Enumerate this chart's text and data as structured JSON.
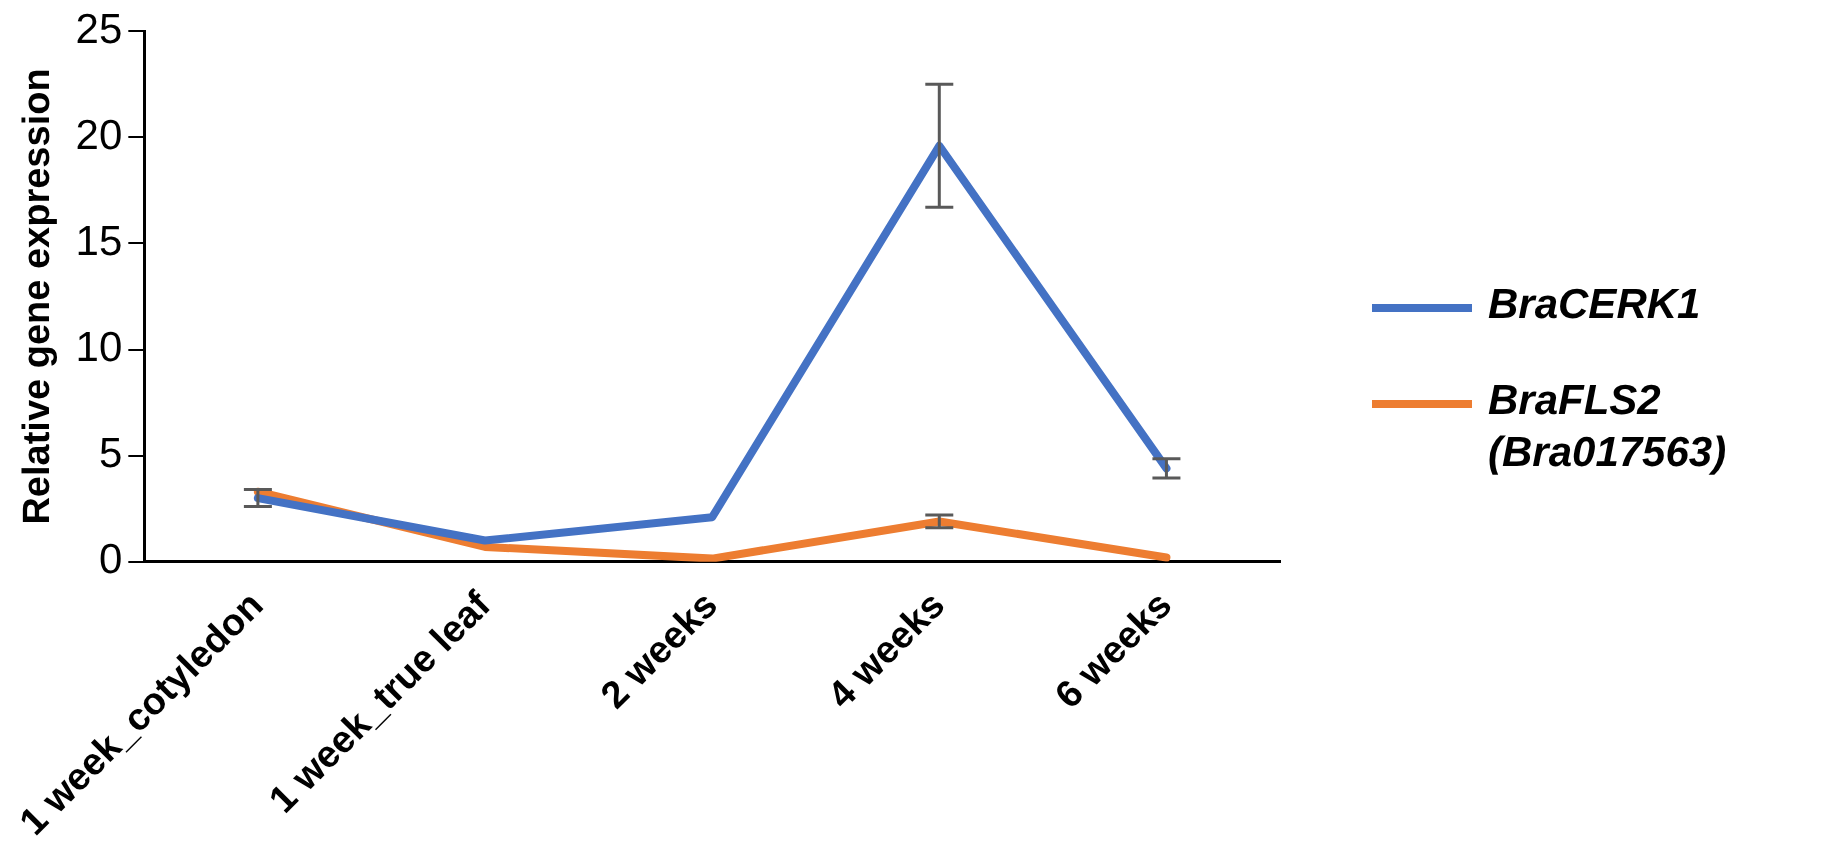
{
  "chart_data": {
    "type": "line",
    "ylabel": "Relative gene expression",
    "categories": [
      "1 week_cotyledon",
      "1 week_true leaf",
      "2 weeks",
      "4 weeks",
      "6 weeks"
    ],
    "series": [
      {
        "name": "BraCERK1",
        "color": "#4472c4",
        "values": [
          3.0,
          1.0,
          2.1,
          19.6,
          4.4
        ],
        "errors": [
          0.4,
          null,
          null,
          2.9,
          0.45
        ]
      },
      {
        "name": "BraFLS2 (Bra017563)",
        "color": "#ed7d31",
        "values": [
          3.3,
          0.7,
          0.15,
          1.9,
          0.2
        ],
        "errors": [
          null,
          null,
          null,
          0.3,
          null
        ]
      }
    ],
    "ylim": [
      0,
      25
    ],
    "yticks": [
      0,
      5,
      10,
      15,
      20,
      25
    ],
    "grid": false,
    "legend": "right",
    "marker": "none",
    "line_style": "solid"
  }
}
